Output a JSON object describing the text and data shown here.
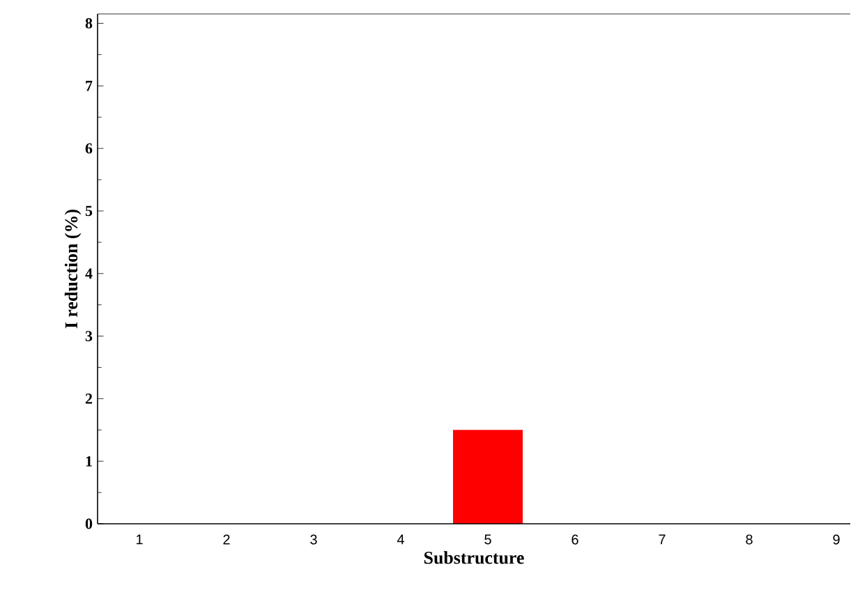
{
  "chart_data": {
    "type": "bar",
    "xlabel": "Substructure",
    "ylabel": "I reduction (%)",
    "categories": [
      "1",
      "2",
      "3",
      "4",
      "5",
      "6",
      "7",
      "8",
      "9"
    ],
    "values": [
      0,
      0,
      0,
      0,
      1.5,
      0,
      0,
      0,
      0
    ],
    "color": "#ff0000",
    "ylim": [
      0,
      8.15
    ],
    "yticks": [
      0,
      1,
      2,
      3,
      4,
      5,
      6,
      7,
      8
    ],
    "grid": false
  }
}
